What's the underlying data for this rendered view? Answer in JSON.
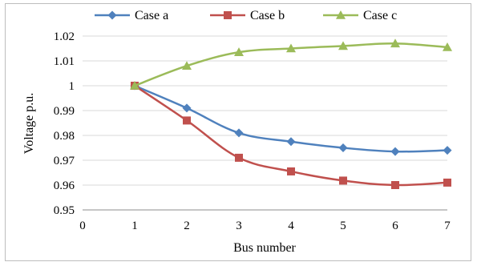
{
  "chart_data": {
    "type": "line",
    "title": "",
    "xlabel": "Bus number",
    "ylabel": "Voltage p.u.",
    "xlim": [
      0,
      7
    ],
    "ylim": [
      0.95,
      1.02
    ],
    "x_ticks": [
      "0",
      "1",
      "2",
      "3",
      "4",
      "5",
      "6",
      "7"
    ],
    "y_ticks": [
      "0.95",
      "0.96",
      "0.97",
      "0.98",
      "0.99",
      "1",
      "1.01",
      "1.02"
    ],
    "grid": "horizontal",
    "legend_position": "top",
    "x": [
      1,
      2,
      3,
      4,
      5,
      6,
      7
    ],
    "series": [
      {
        "name": "Case a",
        "color": "#4f81bd",
        "marker": "diamond",
        "values": [
          1.0,
          0.991,
          0.981,
          0.9775,
          0.975,
          0.9735,
          0.974
        ]
      },
      {
        "name": "Case b",
        "color": "#c0504d",
        "marker": "square",
        "values": [
          1.0,
          0.986,
          0.971,
          0.9655,
          0.9618,
          0.96,
          0.961
        ]
      },
      {
        "name": "Case c",
        "color": "#9bbb59",
        "marker": "triangle",
        "values": [
          1.0,
          1.008,
          1.0135,
          1.015,
          1.016,
          1.017,
          1.0155
        ]
      }
    ]
  }
}
